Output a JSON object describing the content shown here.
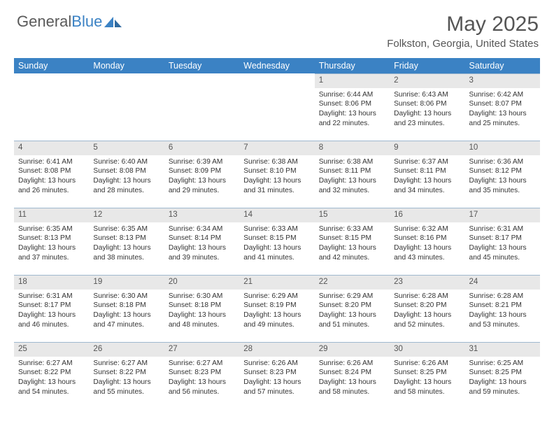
{
  "logo": {
    "text_gray": "General",
    "text_blue": "Blue"
  },
  "title": "May 2025",
  "location": "Folkston, Georgia, United States",
  "colors": {
    "header_bg": "#3b82c4",
    "header_text": "#ffffff",
    "daynum_bg": "#e8e8e8",
    "daynum_border": "#9fb8cf",
    "body_text": "#333333",
    "title_text": "#555555"
  },
  "daysOfWeek": [
    "Sunday",
    "Monday",
    "Tuesday",
    "Wednesday",
    "Thursday",
    "Friday",
    "Saturday"
  ],
  "weeks": [
    [
      null,
      null,
      null,
      null,
      {
        "n": "1",
        "sr": "6:44 AM",
        "ss": "8:06 PM",
        "dl": "13 hours and 22 minutes."
      },
      {
        "n": "2",
        "sr": "6:43 AM",
        "ss": "8:06 PM",
        "dl": "13 hours and 23 minutes."
      },
      {
        "n": "3",
        "sr": "6:42 AM",
        "ss": "8:07 PM",
        "dl": "13 hours and 25 minutes."
      }
    ],
    [
      {
        "n": "4",
        "sr": "6:41 AM",
        "ss": "8:08 PM",
        "dl": "13 hours and 26 minutes."
      },
      {
        "n": "5",
        "sr": "6:40 AM",
        "ss": "8:08 PM",
        "dl": "13 hours and 28 minutes."
      },
      {
        "n": "6",
        "sr": "6:39 AM",
        "ss": "8:09 PM",
        "dl": "13 hours and 29 minutes."
      },
      {
        "n": "7",
        "sr": "6:38 AM",
        "ss": "8:10 PM",
        "dl": "13 hours and 31 minutes."
      },
      {
        "n": "8",
        "sr": "6:38 AM",
        "ss": "8:11 PM",
        "dl": "13 hours and 32 minutes."
      },
      {
        "n": "9",
        "sr": "6:37 AM",
        "ss": "8:11 PM",
        "dl": "13 hours and 34 minutes."
      },
      {
        "n": "10",
        "sr": "6:36 AM",
        "ss": "8:12 PM",
        "dl": "13 hours and 35 minutes."
      }
    ],
    [
      {
        "n": "11",
        "sr": "6:35 AM",
        "ss": "8:13 PM",
        "dl": "13 hours and 37 minutes."
      },
      {
        "n": "12",
        "sr": "6:35 AM",
        "ss": "8:13 PM",
        "dl": "13 hours and 38 minutes."
      },
      {
        "n": "13",
        "sr": "6:34 AM",
        "ss": "8:14 PM",
        "dl": "13 hours and 39 minutes."
      },
      {
        "n": "14",
        "sr": "6:33 AM",
        "ss": "8:15 PM",
        "dl": "13 hours and 41 minutes."
      },
      {
        "n": "15",
        "sr": "6:33 AM",
        "ss": "8:15 PM",
        "dl": "13 hours and 42 minutes."
      },
      {
        "n": "16",
        "sr": "6:32 AM",
        "ss": "8:16 PM",
        "dl": "13 hours and 43 minutes."
      },
      {
        "n": "17",
        "sr": "6:31 AM",
        "ss": "8:17 PM",
        "dl": "13 hours and 45 minutes."
      }
    ],
    [
      {
        "n": "18",
        "sr": "6:31 AM",
        "ss": "8:17 PM",
        "dl": "13 hours and 46 minutes."
      },
      {
        "n": "19",
        "sr": "6:30 AM",
        "ss": "8:18 PM",
        "dl": "13 hours and 47 minutes."
      },
      {
        "n": "20",
        "sr": "6:30 AM",
        "ss": "8:18 PM",
        "dl": "13 hours and 48 minutes."
      },
      {
        "n": "21",
        "sr": "6:29 AM",
        "ss": "8:19 PM",
        "dl": "13 hours and 49 minutes."
      },
      {
        "n": "22",
        "sr": "6:29 AM",
        "ss": "8:20 PM",
        "dl": "13 hours and 51 minutes."
      },
      {
        "n": "23",
        "sr": "6:28 AM",
        "ss": "8:20 PM",
        "dl": "13 hours and 52 minutes."
      },
      {
        "n": "24",
        "sr": "6:28 AM",
        "ss": "8:21 PM",
        "dl": "13 hours and 53 minutes."
      }
    ],
    [
      {
        "n": "25",
        "sr": "6:27 AM",
        "ss": "8:22 PM",
        "dl": "13 hours and 54 minutes."
      },
      {
        "n": "26",
        "sr": "6:27 AM",
        "ss": "8:22 PM",
        "dl": "13 hours and 55 minutes."
      },
      {
        "n": "27",
        "sr": "6:27 AM",
        "ss": "8:23 PM",
        "dl": "13 hours and 56 minutes."
      },
      {
        "n": "28",
        "sr": "6:26 AM",
        "ss": "8:23 PM",
        "dl": "13 hours and 57 minutes."
      },
      {
        "n": "29",
        "sr": "6:26 AM",
        "ss": "8:24 PM",
        "dl": "13 hours and 58 minutes."
      },
      {
        "n": "30",
        "sr": "6:26 AM",
        "ss": "8:25 PM",
        "dl": "13 hours and 58 minutes."
      },
      {
        "n": "31",
        "sr": "6:25 AM",
        "ss": "8:25 PM",
        "dl": "13 hours and 59 minutes."
      }
    ]
  ],
  "labels": {
    "sunrise": "Sunrise:",
    "sunset": "Sunset:",
    "daylight": "Daylight:"
  }
}
